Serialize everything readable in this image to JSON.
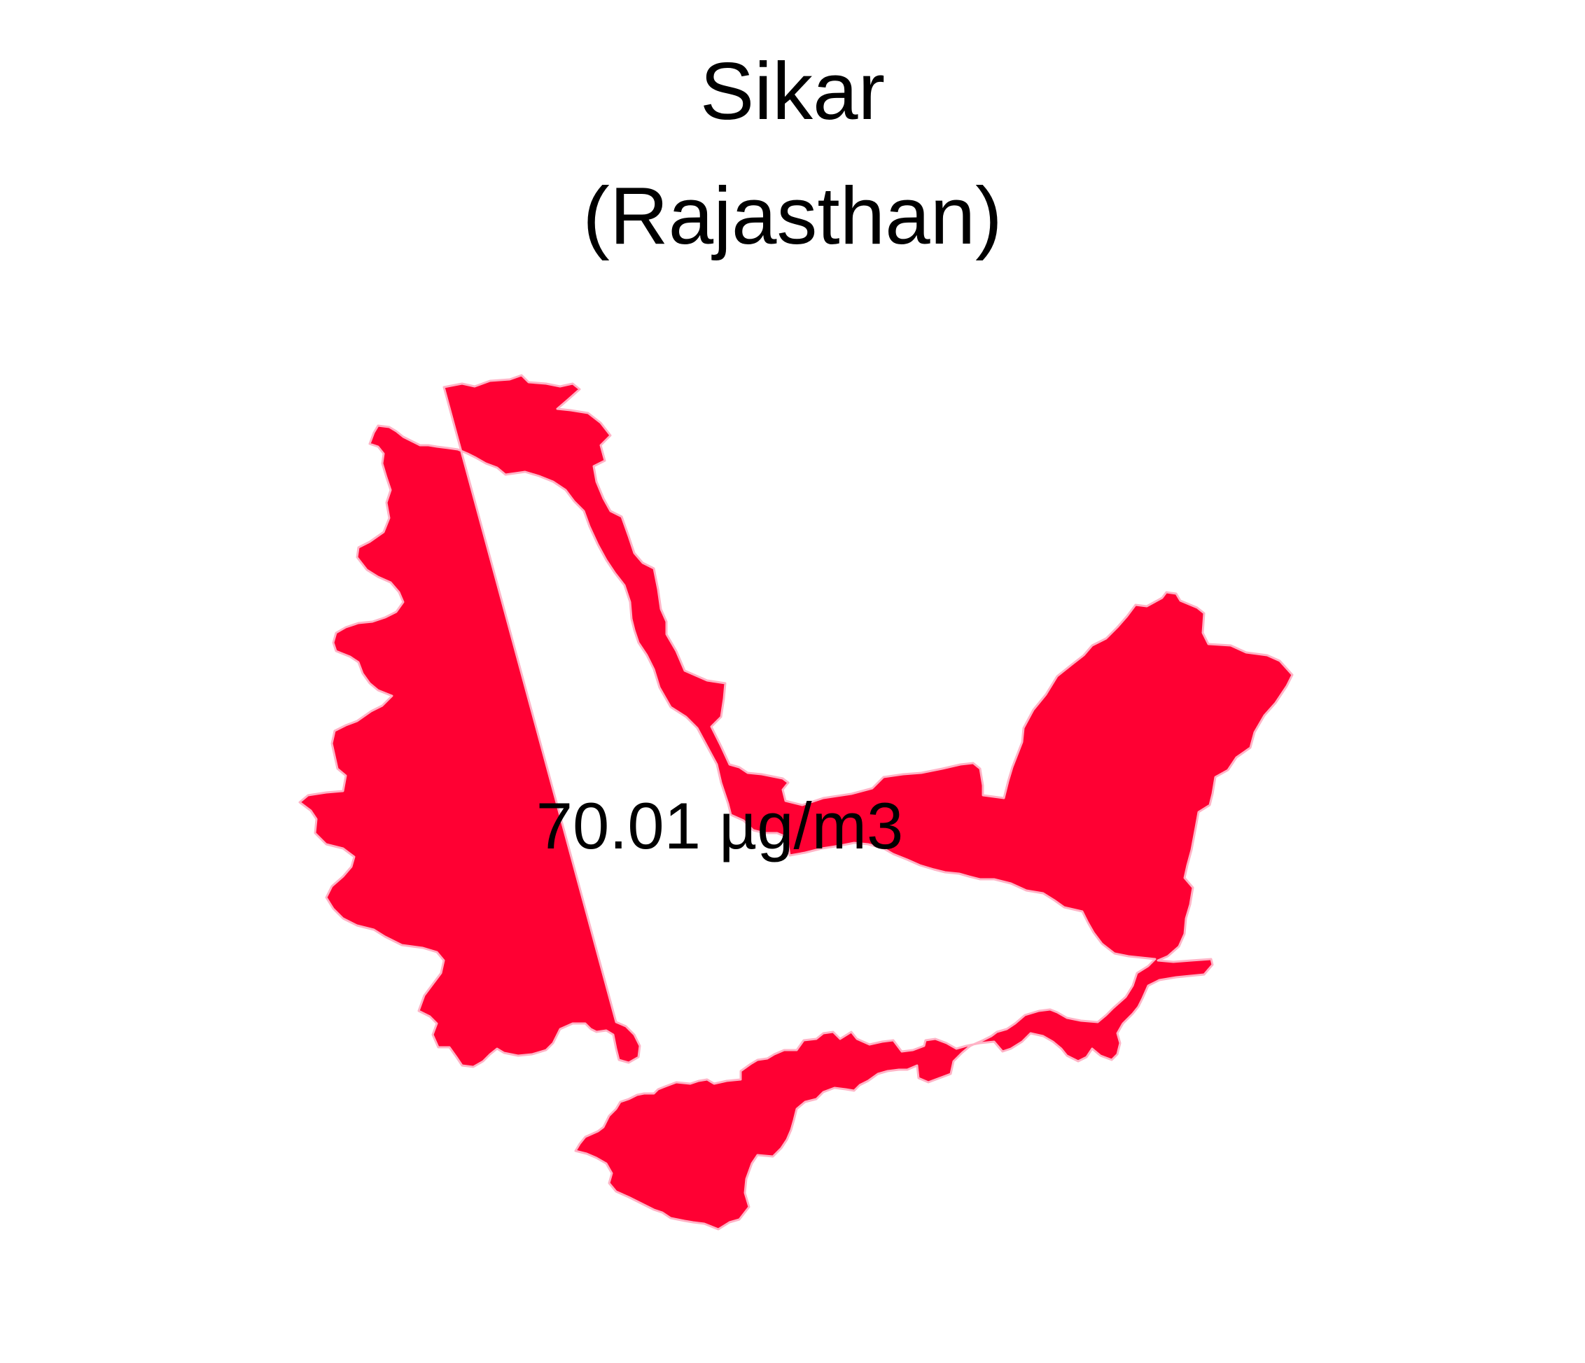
{
  "map": {
    "title": "Sikar",
    "subtitle": "(Rajasthan)",
    "value_label": "70.01 µg/m3",
    "region_name": "Sikar",
    "pm25_value": 70.01,
    "unit": "µg/m3",
    "fill_color": "#FF0033",
    "border_color": "#FFB3C6",
    "background_color": "#FFFFFF"
  }
}
